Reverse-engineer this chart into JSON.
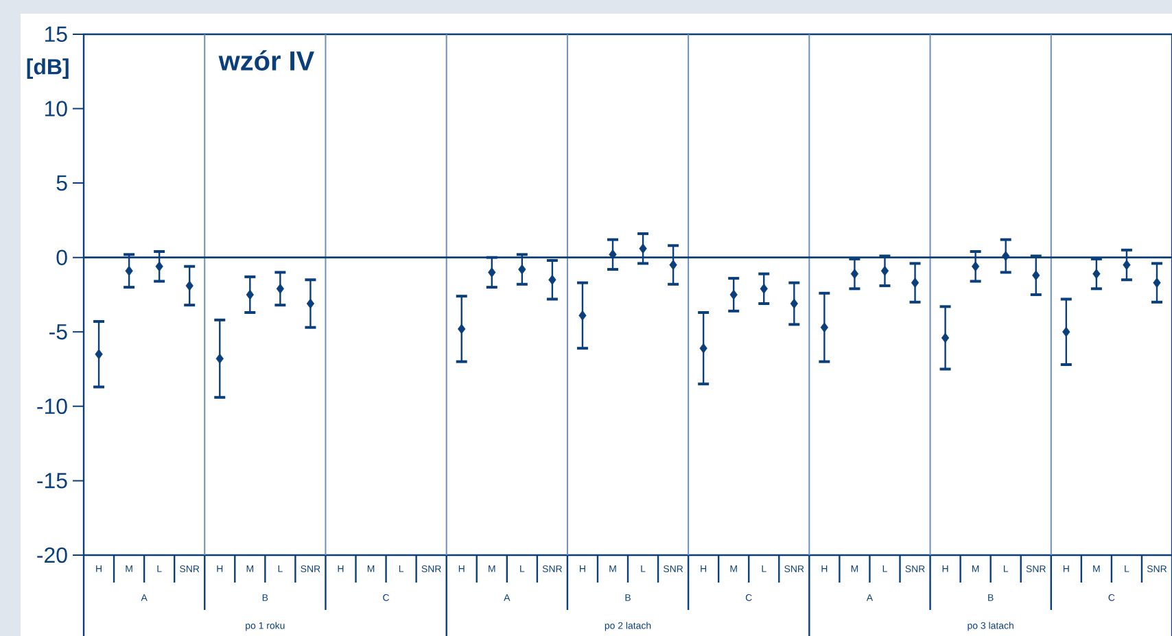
{
  "chart_data": {
    "type": "scatter",
    "title": "wzór IV",
    "ylabel": "[dB]",
    "categories": [
      "H",
      "M",
      "L",
      "SNR",
      "H",
      "M",
      "L",
      "SNR",
      "H",
      "M",
      "L",
      "SNR",
      "H",
      "M",
      "L",
      "SNR",
      "H",
      "M",
      "L",
      "SNR",
      "H",
      "M",
      "L",
      "SNR",
      "H",
      "M",
      "L",
      "SNR",
      "H",
      "M",
      "L",
      "SNR",
      "H",
      "M",
      "L",
      "SNR"
    ],
    "values": [
      -6.5,
      -0.9,
      -0.6,
      -1.9,
      -6.8,
      -2.5,
      -2.1,
      -3.1,
      null,
      null,
      null,
      null,
      -4.8,
      -1.0,
      -0.8,
      -1.5,
      -3.9,
      0.2,
      0.6,
      -0.5,
      -6.1,
      -2.5,
      -2.1,
      -3.1,
      -4.7,
      -1.1,
      -0.9,
      -1.7,
      -5.4,
      -0.6,
      0.1,
      -1.2,
      -5.0,
      -1.1,
      -0.5,
      -1.7
    ],
    "errors": [
      2.2,
      1.1,
      1.0,
      1.3,
      2.6,
      1.2,
      1.1,
      1.6,
      null,
      null,
      null,
      null,
      2.2,
      1.0,
      1.0,
      1.3,
      2.2,
      1.0,
      1.0,
      1.3,
      2.4,
      1.1,
      1.0,
      1.4,
      2.3,
      1.0,
      1.0,
      1.3,
      2.1,
      1.0,
      1.1,
      1.3,
      2.2,
      1.0,
      1.0,
      1.3
    ],
    "color": "#0b3f7c",
    "marker": "diamond",
    "ylim": [
      -20,
      15
    ],
    "yticks": [
      -20,
      -15,
      -10,
      -5,
      0,
      5,
      10,
      15
    ],
    "ref_lines": [
      {
        "axis": "y",
        "value": 0,
        "color": "#0b3f7c"
      }
    ],
    "annotations": [
      "A",
      "B",
      "C",
      "A",
      "B",
      "C",
      "A",
      "B",
      "C",
      "po 1 roku",
      "po 2 latach",
      "po 3 latach"
    ]
  }
}
